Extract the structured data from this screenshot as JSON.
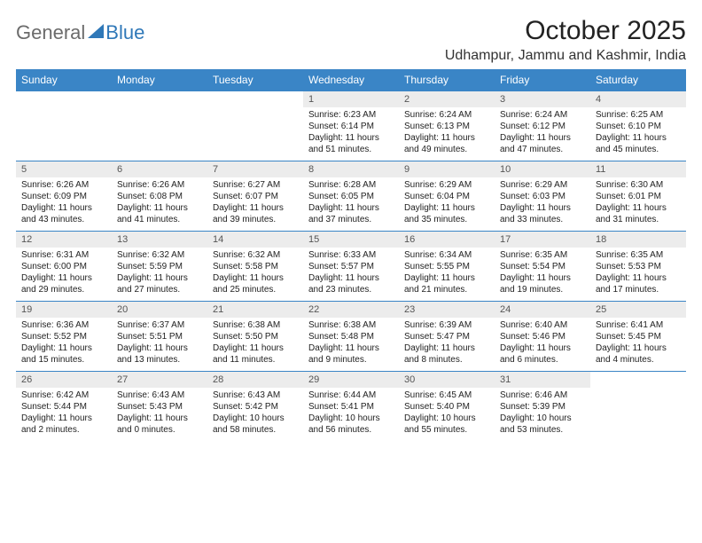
{
  "logo": {
    "general": "General",
    "blue": "Blue"
  },
  "title": "October 2025",
  "location": "Udhampur, Jammu and Kashmir, India",
  "colors": {
    "header_bg": "#3a85c6",
    "header_text": "#ffffff",
    "daynum_bg": "#ececec",
    "daynum_text": "#555555",
    "border": "#3a85c6",
    "body_text": "#222222",
    "logo_gray": "#6b6b6b",
    "logo_blue": "#2f78b8"
  },
  "day_names": [
    "Sunday",
    "Monday",
    "Tuesday",
    "Wednesday",
    "Thursday",
    "Friday",
    "Saturday"
  ],
  "weeks": [
    [
      null,
      null,
      null,
      {
        "n": "1",
        "sunrise": "Sunrise: 6:23 AM",
        "sunset": "Sunset: 6:14 PM",
        "daylight": "Daylight: 11 hours and 51 minutes."
      },
      {
        "n": "2",
        "sunrise": "Sunrise: 6:24 AM",
        "sunset": "Sunset: 6:13 PM",
        "daylight": "Daylight: 11 hours and 49 minutes."
      },
      {
        "n": "3",
        "sunrise": "Sunrise: 6:24 AM",
        "sunset": "Sunset: 6:12 PM",
        "daylight": "Daylight: 11 hours and 47 minutes."
      },
      {
        "n": "4",
        "sunrise": "Sunrise: 6:25 AM",
        "sunset": "Sunset: 6:10 PM",
        "daylight": "Daylight: 11 hours and 45 minutes."
      }
    ],
    [
      {
        "n": "5",
        "sunrise": "Sunrise: 6:26 AM",
        "sunset": "Sunset: 6:09 PM",
        "daylight": "Daylight: 11 hours and 43 minutes."
      },
      {
        "n": "6",
        "sunrise": "Sunrise: 6:26 AM",
        "sunset": "Sunset: 6:08 PM",
        "daylight": "Daylight: 11 hours and 41 minutes."
      },
      {
        "n": "7",
        "sunrise": "Sunrise: 6:27 AM",
        "sunset": "Sunset: 6:07 PM",
        "daylight": "Daylight: 11 hours and 39 minutes."
      },
      {
        "n": "8",
        "sunrise": "Sunrise: 6:28 AM",
        "sunset": "Sunset: 6:05 PM",
        "daylight": "Daylight: 11 hours and 37 minutes."
      },
      {
        "n": "9",
        "sunrise": "Sunrise: 6:29 AM",
        "sunset": "Sunset: 6:04 PM",
        "daylight": "Daylight: 11 hours and 35 minutes."
      },
      {
        "n": "10",
        "sunrise": "Sunrise: 6:29 AM",
        "sunset": "Sunset: 6:03 PM",
        "daylight": "Daylight: 11 hours and 33 minutes."
      },
      {
        "n": "11",
        "sunrise": "Sunrise: 6:30 AM",
        "sunset": "Sunset: 6:01 PM",
        "daylight": "Daylight: 11 hours and 31 minutes."
      }
    ],
    [
      {
        "n": "12",
        "sunrise": "Sunrise: 6:31 AM",
        "sunset": "Sunset: 6:00 PM",
        "daylight": "Daylight: 11 hours and 29 minutes."
      },
      {
        "n": "13",
        "sunrise": "Sunrise: 6:32 AM",
        "sunset": "Sunset: 5:59 PM",
        "daylight": "Daylight: 11 hours and 27 minutes."
      },
      {
        "n": "14",
        "sunrise": "Sunrise: 6:32 AM",
        "sunset": "Sunset: 5:58 PM",
        "daylight": "Daylight: 11 hours and 25 minutes."
      },
      {
        "n": "15",
        "sunrise": "Sunrise: 6:33 AM",
        "sunset": "Sunset: 5:57 PM",
        "daylight": "Daylight: 11 hours and 23 minutes."
      },
      {
        "n": "16",
        "sunrise": "Sunrise: 6:34 AM",
        "sunset": "Sunset: 5:55 PM",
        "daylight": "Daylight: 11 hours and 21 minutes."
      },
      {
        "n": "17",
        "sunrise": "Sunrise: 6:35 AM",
        "sunset": "Sunset: 5:54 PM",
        "daylight": "Daylight: 11 hours and 19 minutes."
      },
      {
        "n": "18",
        "sunrise": "Sunrise: 6:35 AM",
        "sunset": "Sunset: 5:53 PM",
        "daylight": "Daylight: 11 hours and 17 minutes."
      }
    ],
    [
      {
        "n": "19",
        "sunrise": "Sunrise: 6:36 AM",
        "sunset": "Sunset: 5:52 PM",
        "daylight": "Daylight: 11 hours and 15 minutes."
      },
      {
        "n": "20",
        "sunrise": "Sunrise: 6:37 AM",
        "sunset": "Sunset: 5:51 PM",
        "daylight": "Daylight: 11 hours and 13 minutes."
      },
      {
        "n": "21",
        "sunrise": "Sunrise: 6:38 AM",
        "sunset": "Sunset: 5:50 PM",
        "daylight": "Daylight: 11 hours and 11 minutes."
      },
      {
        "n": "22",
        "sunrise": "Sunrise: 6:38 AM",
        "sunset": "Sunset: 5:48 PM",
        "daylight": "Daylight: 11 hours and 9 minutes."
      },
      {
        "n": "23",
        "sunrise": "Sunrise: 6:39 AM",
        "sunset": "Sunset: 5:47 PM",
        "daylight": "Daylight: 11 hours and 8 minutes."
      },
      {
        "n": "24",
        "sunrise": "Sunrise: 6:40 AM",
        "sunset": "Sunset: 5:46 PM",
        "daylight": "Daylight: 11 hours and 6 minutes."
      },
      {
        "n": "25",
        "sunrise": "Sunrise: 6:41 AM",
        "sunset": "Sunset: 5:45 PM",
        "daylight": "Daylight: 11 hours and 4 minutes."
      }
    ],
    [
      {
        "n": "26",
        "sunrise": "Sunrise: 6:42 AM",
        "sunset": "Sunset: 5:44 PM",
        "daylight": "Daylight: 11 hours and 2 minutes."
      },
      {
        "n": "27",
        "sunrise": "Sunrise: 6:43 AM",
        "sunset": "Sunset: 5:43 PM",
        "daylight": "Daylight: 11 hours and 0 minutes."
      },
      {
        "n": "28",
        "sunrise": "Sunrise: 6:43 AM",
        "sunset": "Sunset: 5:42 PM",
        "daylight": "Daylight: 10 hours and 58 minutes."
      },
      {
        "n": "29",
        "sunrise": "Sunrise: 6:44 AM",
        "sunset": "Sunset: 5:41 PM",
        "daylight": "Daylight: 10 hours and 56 minutes."
      },
      {
        "n": "30",
        "sunrise": "Sunrise: 6:45 AM",
        "sunset": "Sunset: 5:40 PM",
        "daylight": "Daylight: 10 hours and 55 minutes."
      },
      {
        "n": "31",
        "sunrise": "Sunrise: 6:46 AM",
        "sunset": "Sunset: 5:39 PM",
        "daylight": "Daylight: 10 hours and 53 minutes."
      },
      null
    ]
  ]
}
